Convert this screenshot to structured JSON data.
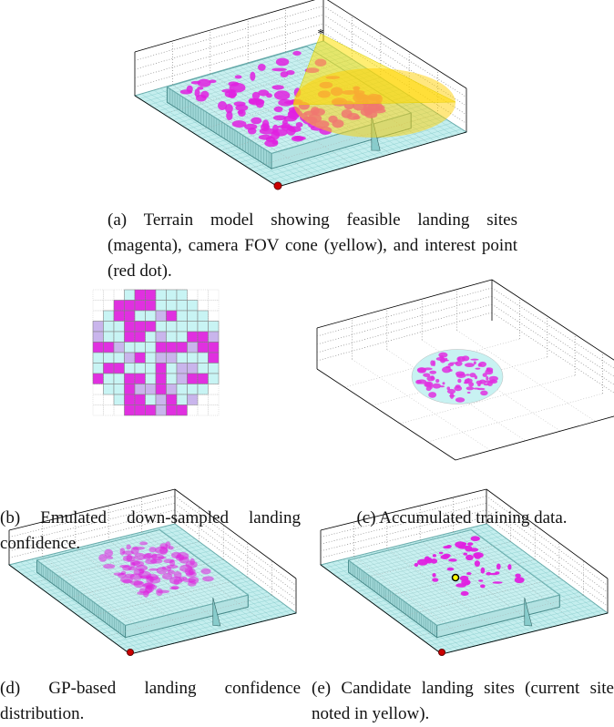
{
  "figure": {
    "captions": {
      "a": "(a) Terrain model showing feasible landing sites (magenta), camera FOV cone (yellow), and interest point (red dot).",
      "b": "(b) Emulated down-sampled landing confidence.",
      "c": "(c) Accumulated training data.",
      "d": "(d) GP-based landing confidence distribution.",
      "e": "(e) Candidate landing sites (current site noted in yellow)."
    }
  }
}
